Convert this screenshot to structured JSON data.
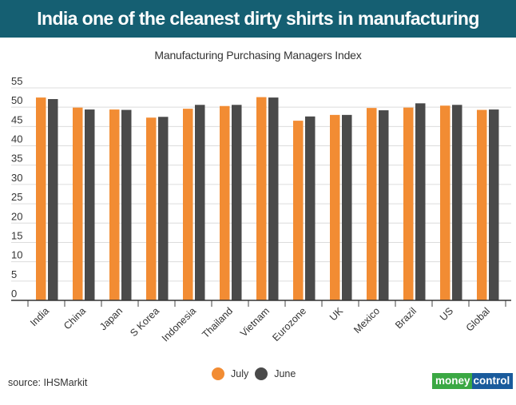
{
  "header": {
    "title": "India one of the cleanest dirty shirts in manufacturing"
  },
  "footer": {
    "source": "source: IHSMarkit",
    "logo_part1": "money",
    "logo_part2": "control"
  },
  "colors": {
    "july": "#f28c33",
    "june": "#4a4a4a",
    "header": "#155f72"
  },
  "chart_data": {
    "type": "bar",
    "title": "Manufacturing Purchasing Managers Index",
    "xlabel": "",
    "ylabel": "",
    "ylim": [
      0,
      55
    ],
    "yticks": [
      0,
      5,
      10,
      15,
      20,
      25,
      30,
      35,
      40,
      45,
      50,
      55
    ],
    "grid": true,
    "legend_position": "bottom-center",
    "categories": [
      "India",
      "China",
      "Japan",
      "S Korea",
      "Indonesia",
      "Thailand",
      "Vietnam",
      "Eurozone",
      "UK",
      "Mexico",
      "Brazil",
      "US",
      "Global"
    ],
    "series": [
      {
        "name": "July",
        "values": [
          52.5,
          49.9,
          49.4,
          47.3,
          49.6,
          50.3,
          52.6,
          46.5,
          48.0,
          49.8,
          49.9,
          50.4,
          49.3
        ]
      },
      {
        "name": "June",
        "values": [
          52.1,
          49.4,
          49.3,
          47.5,
          50.6,
          50.6,
          52.5,
          47.6,
          48.0,
          49.2,
          51.0,
          50.6,
          49.4
        ]
      }
    ]
  }
}
